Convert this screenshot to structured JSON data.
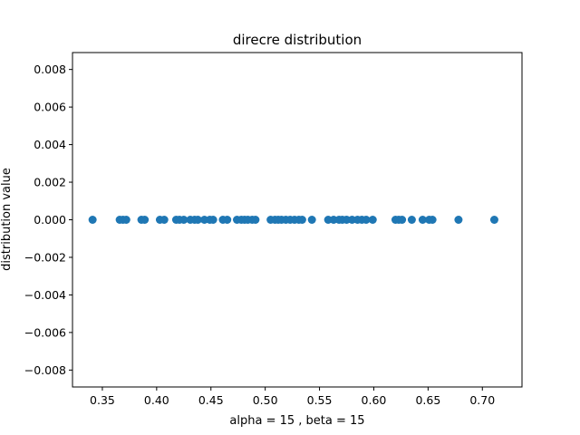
{
  "chart_data": {
    "type": "scatter",
    "title": "direcre distribution",
    "xlabel": "alpha = 15 , beta = 15",
    "ylabel": "distribution value",
    "xlim": [
      0.3225,
      0.7365
    ],
    "ylim": [
      -0.0089,
      0.0089
    ],
    "xticks": [
      0.35,
      0.4,
      0.45,
      0.5,
      0.55,
      0.6,
      0.65,
      0.7
    ],
    "xtick_labels": [
      "0.35",
      "0.40",
      "0.45",
      "0.50",
      "0.55",
      "0.60",
      "0.65",
      "0.70"
    ],
    "yticks": [
      -0.008,
      -0.006,
      -0.004,
      -0.002,
      0.0,
      0.002,
      0.004,
      0.006,
      0.008
    ],
    "ytick_labels": [
      "−0.008",
      "−0.006",
      "−0.004",
      "−0.002",
      "0.000",
      "0.002",
      "0.004",
      "0.006",
      "0.008"
    ],
    "grid": false,
    "marker_color": "#1f77b4",
    "x": [
      0.341,
      0.366,
      0.369,
      0.372,
      0.386,
      0.389,
      0.403,
      0.407,
      0.418,
      0.421,
      0.425,
      0.431,
      0.435,
      0.438,
      0.444,
      0.449,
      0.452,
      0.461,
      0.465,
      0.474,
      0.478,
      0.481,
      0.484,
      0.488,
      0.491,
      0.505,
      0.509,
      0.512,
      0.515,
      0.519,
      0.523,
      0.527,
      0.531,
      0.534,
      0.543,
      0.558,
      0.563,
      0.568,
      0.571,
      0.575,
      0.58,
      0.585,
      0.589,
      0.593,
      0.599,
      0.62,
      0.623,
      0.626,
      0.635,
      0.645,
      0.651,
      0.654,
      0.678,
      0.711
    ],
    "y": [
      0,
      0,
      0,
      0,
      0,
      0,
      0,
      0,
      0,
      0,
      0,
      0,
      0,
      0,
      0,
      0,
      0,
      0,
      0,
      0,
      0,
      0,
      0,
      0,
      0,
      0,
      0,
      0,
      0,
      0,
      0,
      0,
      0,
      0,
      0,
      0,
      0,
      0,
      0,
      0,
      0,
      0,
      0,
      0,
      0,
      0,
      0,
      0,
      0,
      0,
      0,
      0,
      0,
      0
    ]
  }
}
